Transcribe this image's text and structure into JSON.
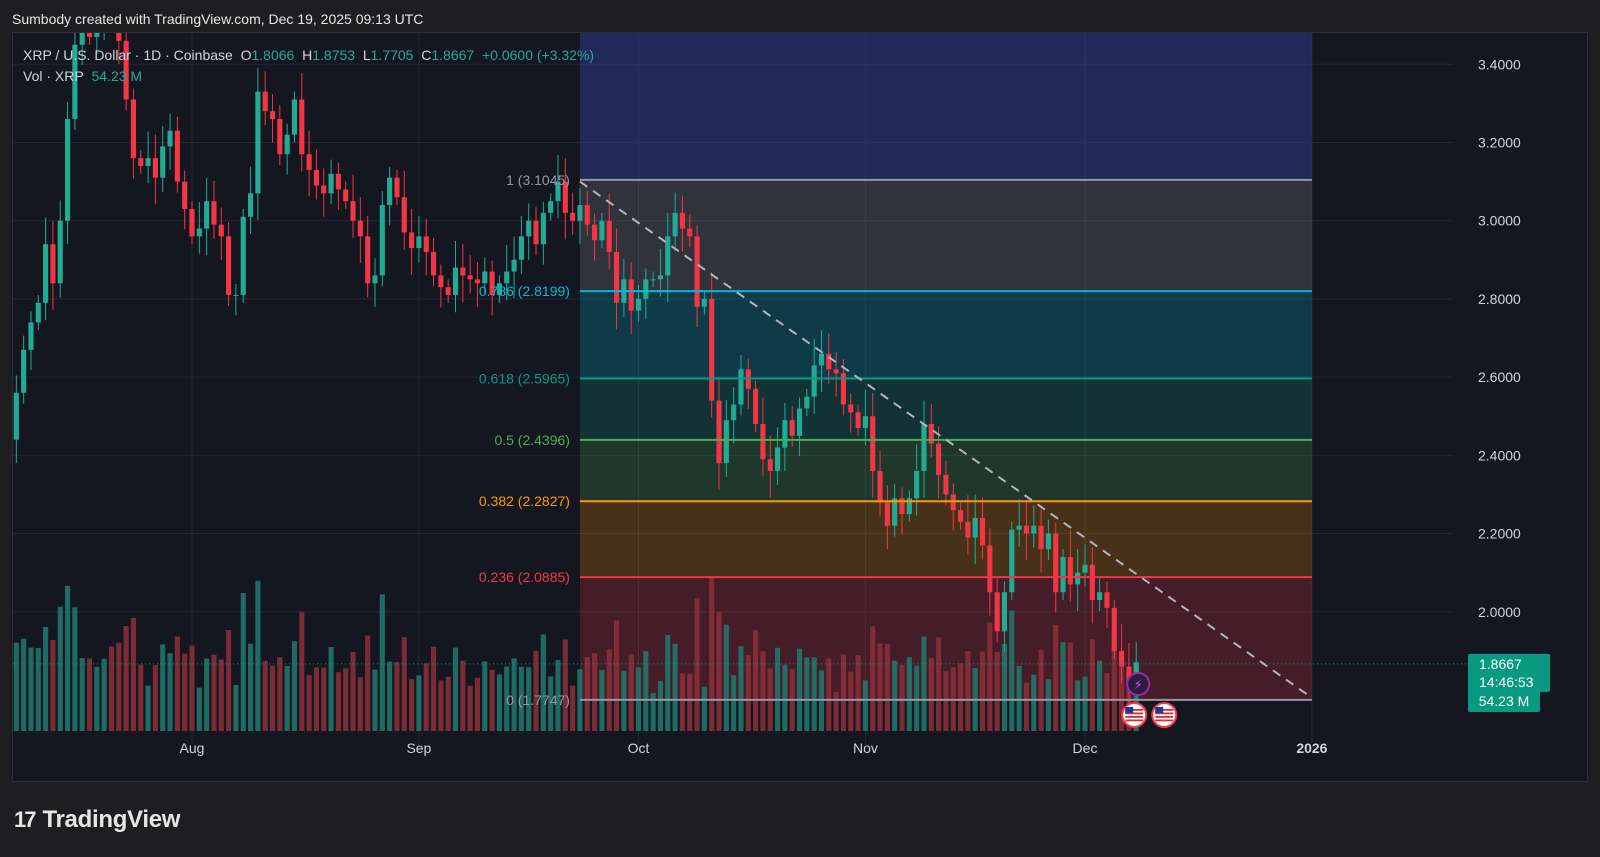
{
  "caption": "Sumbody created with TradingView.com, Dec 19, 2025 09:13 UTC",
  "legend": {
    "symbol_line": "XRP / U.S. Dollar · 1D · Coinbase",
    "open_label": "O",
    "open": "1.8066",
    "high_label": "H",
    "high": "1.8753",
    "low_label": "L",
    "low": "1.7705",
    "close_label": "C",
    "close": "1.8667",
    "change": "+0.0600 (+3.32%)",
    "vol_label": "Vol · XRP",
    "vol": "54.23 M"
  },
  "brand": {
    "name": "TradingView",
    "logo_text": "17"
  },
  "colors": {
    "up": "#22ab94",
    "down": "#f23645",
    "vol_up": "#1f7a6e",
    "vol_down": "#8c2f39",
    "price_badge": "#089981"
  },
  "price_badge": {
    "price": "1.8667",
    "countdown": "14:46:53"
  },
  "volume_badge": "54.23 M",
  "icons": [
    "lightning-event-icon",
    "us-flag-icon",
    "us-flag-icon"
  ],
  "chart_data": {
    "type": "candlestick",
    "title": "XRP / U.S. Dollar · 1D · Coinbase",
    "ylim": [
      1.69,
      3.48
    ],
    "y_ticks": [
      "3.4000",
      "3.2000",
      "3.0000",
      "2.8000",
      "2.6000",
      "2.4000",
      "2.2000",
      "2.0000"
    ],
    "x_labels": [
      {
        "label": "Aug",
        "date": "2025-08-01"
      },
      {
        "label": "Sep",
        "date": "2025-09-01"
      },
      {
        "label": "Oct",
        "date": "2025-10-01"
      },
      {
        "label": "Nov",
        "date": "2025-11-01"
      },
      {
        "label": "Dec",
        "date": "2025-12-01"
      },
      {
        "label": "2026",
        "date": "2026-01-01"
      }
    ],
    "candles_start_date": "2025-07-04",
    "closes": [
      2.26,
      2.29,
      2.36,
      2.44,
      2.56,
      2.67,
      2.74,
      2.79,
      2.94,
      2.84,
      3.0,
      3.26,
      3.45,
      3.5,
      3.47,
      3.53,
      3.59,
      3.52,
      3.46,
      3.31,
      3.16,
      3.14,
      3.16,
      3.11,
      3.19,
      3.23,
      3.1,
      3.03,
      2.96,
      2.98,
      3.05,
      2.99,
      2.96,
      2.81,
      2.81,
      3.01,
      3.07,
      3.33,
      3.28,
      3.26,
      3.17,
      3.22,
      3.31,
      3.17,
      3.13,
      3.09,
      3.07,
      3.12,
      3.08,
      3.05,
      3.0,
      2.96,
      2.84,
      2.86,
      3.04,
      3.11,
      3.06,
      2.97,
      2.93,
      2.96,
      2.92,
      2.86,
      2.83,
      2.81,
      2.88,
      2.86,
      2.85,
      2.84,
      2.87,
      2.81,
      2.84,
      2.87,
      2.9,
      2.96,
      3.0,
      2.94,
      3.02,
      3.05,
      3.1,
      3.02,
      3.0,
      3.04,
      2.99,
      2.95,
      3.0,
      2.92,
      2.79,
      2.85,
      2.77,
      2.8,
      2.85,
      2.85,
      2.86,
      2.96,
      3.02,
      2.98,
      2.96,
      2.78,
      2.8,
      2.54,
      2.38,
      2.49,
      2.53,
      2.62,
      2.57,
      2.48,
      2.39,
      2.36,
      2.42,
      2.49,
      2.45,
      2.52,
      2.55,
      2.63,
      2.66,
      2.62,
      2.61,
      2.53,
      2.51,
      2.47,
      2.5,
      2.36,
      2.28,
      2.22,
      2.29,
      2.25,
      2.29,
      2.36,
      2.48,
      2.43,
      2.35,
      2.3,
      2.26,
      2.23,
      2.19,
      2.24,
      2.17,
      2.05,
      1.95,
      2.05,
      2.21,
      2.22,
      2.2,
      2.22,
      2.16,
      2.2,
      2.05,
      2.14,
      2.07,
      2.1,
      2.12,
      2.03,
      2.05,
      2.01,
      1.9,
      1.86,
      1.81,
      1.87
    ],
    "fib_levels": [
      {
        "label": "0",
        "value": "1.7747",
        "color": "#9598a1"
      },
      {
        "label": "0.236",
        "value": "2.0885",
        "color": "#f23645"
      },
      {
        "label": "0.382",
        "value": "2.2827",
        "color": "#ff9800"
      },
      {
        "label": "0.5",
        "value": "2.4396",
        "color": "#4caf50"
      },
      {
        "label": "0.618",
        "value": "2.5965",
        "color": "#089981"
      },
      {
        "label": "0.786",
        "value": "2.8199",
        "color": "#00bcd4"
      },
      {
        "label": "1",
        "value": "3.1045",
        "color": "#9598a1"
      }
    ],
    "fib_range": {
      "start_date": "2025-09-23",
      "end_date": "2026-01-01",
      "top_fill_to": 3.48
    },
    "trendline": {
      "from": {
        "date": "2025-09-23",
        "value": 3.1
      },
      "to": {
        "date": "2026-01-01",
        "value": 1.78
      }
    },
    "last_price": 1.8667,
    "volume_unit": "M"
  }
}
